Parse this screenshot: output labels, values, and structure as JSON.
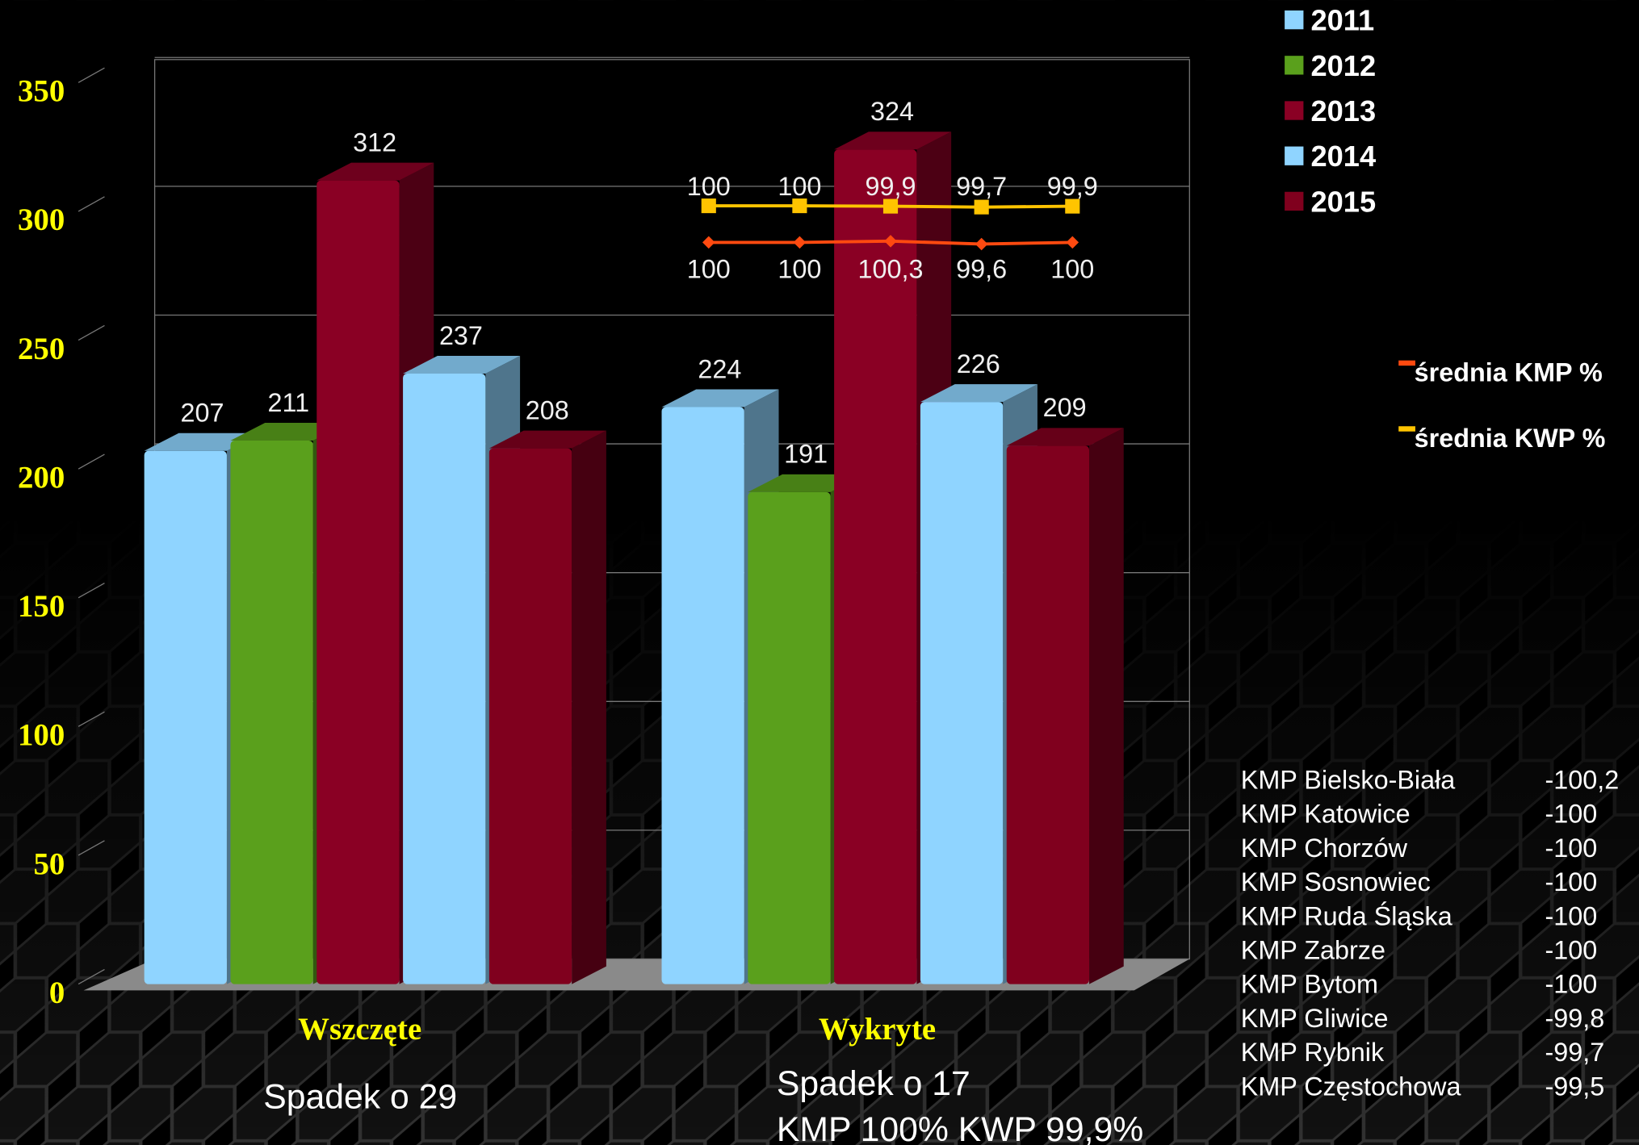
{
  "chart_data": {
    "type": "bar",
    "categories": [
      "Wszczęte",
      "Wykryte"
    ],
    "series": [
      {
        "name": "2011",
        "color": "#8fd4ff",
        "values": [
          207,
          224
        ]
      },
      {
        "name": "2012",
        "color": "#5aa01c",
        "values": [
          211,
          191
        ]
      },
      {
        "name": "2013",
        "color": "#8a0024",
        "values": [
          312,
          324
        ]
      },
      {
        "name": "2014",
        "color": "#8fd4ff",
        "values": [
          237,
          226
        ]
      },
      {
        "name": "2015",
        "color": "#80001e",
        "values": [
          208,
          209
        ]
      }
    ],
    "ylim": [
      0,
      350
    ],
    "yticks": [
      0,
      50,
      100,
      150,
      200,
      250,
      300,
      350
    ],
    "grid": true,
    "lines": [
      {
        "name": "średnia KMP %",
        "color": "#ff4a10",
        "values": [
          100,
          100,
          100.3,
          99.6,
          100
        ],
        "value_labels": [
          "100",
          "100",
          "100,3",
          "99,6",
          "100"
        ]
      },
      {
        "name": "średnia KWP %",
        "color": "#ffc400",
        "values": [
          100,
          100,
          99.9,
          99.7,
          99.9
        ],
        "value_labels": [
          "100",
          "100",
          "99,9",
          "99,7",
          "99,9"
        ]
      }
    ],
    "annotations": [
      "Spadek o 29",
      "Spadek o 17",
      "KMP 100% KWP 99,9%"
    ]
  },
  "table": {
    "rows": [
      [
        "KMP Bielsko-Biała",
        "-100,2"
      ],
      [
        "KMP Katowice",
        "-100"
      ],
      [
        "KMP Chorzów",
        "-100"
      ],
      [
        "KMP Sosnowiec",
        "-100"
      ],
      [
        "KMP Ruda Śląska",
        "-100"
      ],
      [
        "KMP Zabrze",
        "-100"
      ],
      [
        "KMP Bytom",
        "-100"
      ],
      [
        "KMP Gliwice",
        "-99,8"
      ],
      [
        "KMP Rybnik",
        "-99,7"
      ],
      [
        "KMP Częstochowa",
        "-99,5"
      ]
    ]
  }
}
